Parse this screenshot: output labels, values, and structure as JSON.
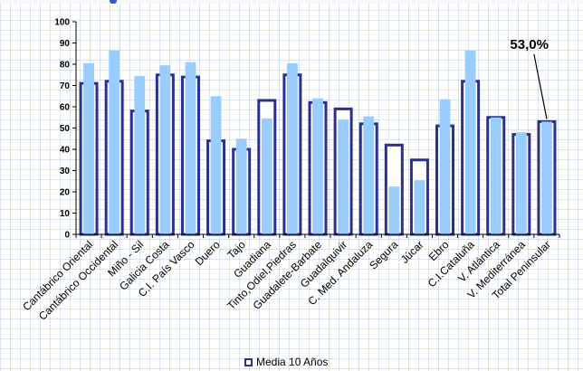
{
  "chart_data": {
    "type": "bar",
    "categories": [
      "Cantábrico Oriental",
      "Cantábrico Occidental",
      "Miño - Sil",
      "Galicia Costa",
      "C.I. País Vasco",
      "Duero",
      "Tajo",
      "Guadiana",
      "Tinto,Odiel,Piedras",
      "Guadalete-Barbate",
      "Guadalquivir",
      "C. Med. Andaluza",
      "Segura",
      "Júcar",
      "Ebro",
      "C.I.Cataluña",
      "V. Atlántica",
      "V. Mediterránea",
      "Total Peninsular"
    ],
    "series": [
      {
        "role": "current",
        "color": "#99ccff",
        "values": [
          80.5,
          86.5,
          74.5,
          79.5,
          81,
          65,
          45,
          54.5,
          80.5,
          64,
          54,
          55.5,
          22.5,
          25.5,
          63.5,
          86.5,
          55,
          48,
          53
        ]
      },
      {
        "name": "Media 10 Años",
        "role": "average",
        "color": "#2b2f8f",
        "values": [
          71,
          72,
          58,
          75,
          74,
          44,
          40,
          63,
          75,
          62,
          59,
          52,
          42,
          35,
          51,
          72,
          55,
          47,
          53
        ]
      }
    ],
    "ylim": [
      0,
      100
    ],
    "yticks": [
      0,
      10,
      20,
      30,
      40,
      50,
      60,
      70,
      80,
      90,
      100
    ],
    "xlabel": "",
    "ylabel": "",
    "grid": false,
    "legend_position": "bottom",
    "annotation": {
      "text": "53,0%",
      "category": "Total Peninsular"
    }
  },
  "legend": {
    "label": "Media 10 Años"
  }
}
